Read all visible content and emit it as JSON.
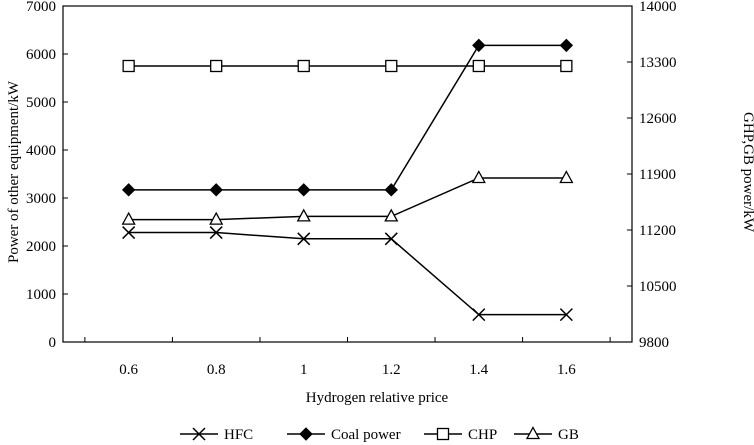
{
  "chart_data": {
    "type": "line",
    "title": "",
    "xlabel": "Hydrogen relative price",
    "ylabel_left": "Power of other equipment/kW",
    "ylabel_right": "GHP,GB power/kW",
    "x_ticks": [
      "0.6",
      "0.8",
      "1",
      "1.2",
      "1.4",
      "1.6"
    ],
    "x": [
      0.6,
      0.8,
      1.0,
      1.2,
      1.4,
      1.6
    ],
    "xlim": [
      0.45,
      1.75
    ],
    "ylim_left": [
      0,
      7000
    ],
    "ylim_right": [
      9800,
      14000
    ],
    "y_ticks_left": [
      "0",
      "1000",
      "2000",
      "3000",
      "4000",
      "5000",
      "6000",
      "7000"
    ],
    "y_ticks_right": [
      "9800",
      "10500",
      "11200",
      "11900",
      "12600",
      "13300",
      "14000"
    ],
    "legend_position": "bottom",
    "series": [
      {
        "name": "HFC",
        "axis": "left",
        "marker": "x",
        "values": [
          2280,
          2280,
          2150,
          2150,
          570,
          570
        ]
      },
      {
        "name": "Coal power",
        "axis": "left",
        "marker": "diamond",
        "values": [
          3170,
          3170,
          3170,
          3170,
          6180,
          6180
        ]
      },
      {
        "name": "CHP",
        "axis": "right",
        "marker": "square",
        "values": [
          13250,
          13250,
          13250,
          13250,
          13250,
          13250
        ]
      },
      {
        "name": "GB",
        "axis": "right",
        "marker": "triangle",
        "values": [
          11330,
          11330,
          11370,
          11370,
          11850,
          11850
        ]
      }
    ]
  }
}
